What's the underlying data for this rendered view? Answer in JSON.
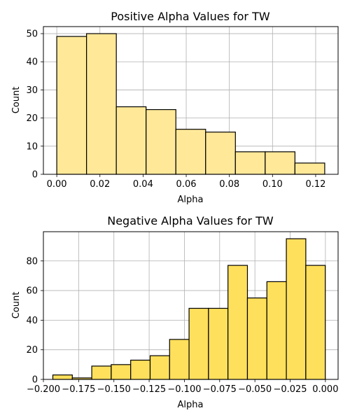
{
  "chart_data": [
    {
      "type": "bar",
      "title": "Positive Alpha Values for TW",
      "xlabel": "Alpha",
      "ylabel": "Count",
      "bin_edges": [
        0.0,
        0.0138,
        0.0276,
        0.0414,
        0.0552,
        0.069,
        0.0828,
        0.0966,
        0.1104,
        0.1242
      ],
      "values": [
        49,
        50,
        24,
        23,
        16,
        15,
        8,
        8,
        4
      ],
      "xlim": [
        -0.0062,
        0.1304
      ],
      "ylim": [
        0,
        52.5
      ],
      "xticks": [
        0.0,
        0.02,
        0.04,
        0.06,
        0.08,
        0.1,
        0.12
      ],
      "xtick_labels": [
        "0.00",
        "0.02",
        "0.04",
        "0.06",
        "0.08",
        "0.10",
        "0.12"
      ],
      "yticks": [
        0,
        10,
        20,
        30,
        40,
        50
      ],
      "ytick_labels": [
        "0",
        "10",
        "20",
        "30",
        "40",
        "50"
      ],
      "grid": true,
      "color": "#FFE999",
      "edge_color": "#000000"
    },
    {
      "type": "bar",
      "title": "Negative Alpha Values for TW",
      "xlabel": "Alpha",
      "ylabel": "Count",
      "bin_edges": [
        -0.1933,
        -0.1795,
        -0.1657,
        -0.1519,
        -0.1381,
        -0.1243,
        -0.1105,
        -0.0967,
        -0.0829,
        -0.0691,
        -0.0553,
        -0.0415,
        -0.0277,
        -0.0139,
        -0.0001
      ],
      "values": [
        3,
        1,
        9,
        10,
        13,
        16,
        27,
        48,
        48,
        77,
        55,
        66,
        95,
        77
      ],
      "xlim": [
        -0.2,
        0.009
      ],
      "ylim": [
        0,
        99.75
      ],
      "xticks": [
        -0.2,
        -0.175,
        -0.15,
        -0.125,
        -0.1,
        -0.075,
        -0.05,
        -0.025,
        0.0
      ],
      "xtick_labels": [
        "−0.200",
        "−0.175",
        "−0.150",
        "−0.125",
        "−0.100",
        "−0.075",
        "−0.050",
        "−0.025",
        "0.000"
      ],
      "yticks": [
        0,
        20,
        40,
        60,
        80
      ],
      "ytick_labels": [
        "0",
        "20",
        "40",
        "60",
        "80"
      ],
      "grid": true,
      "color": "#FFE05C",
      "edge_color": "#000000"
    }
  ]
}
